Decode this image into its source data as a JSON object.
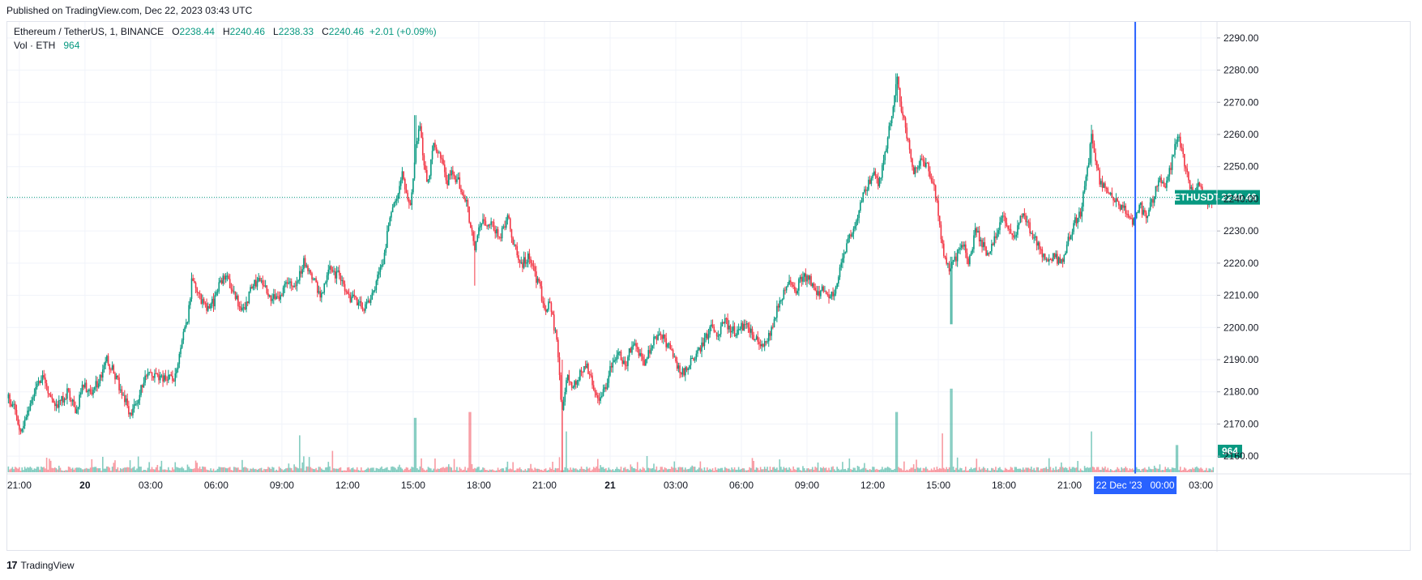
{
  "published": "Published on TradingView.com, Dec 22, 2023 03:43 UTC",
  "footer": {
    "logo": "17",
    "brand": "TradingView"
  },
  "legend": {
    "symbol": "Ethereum / TetherUS, 1, BINANCE",
    "o_label": "O",
    "o": "2238.44",
    "h_label": "H",
    "h": "2240.46",
    "l_label": "L",
    "l": "2238.33",
    "c_label": "C",
    "c": "2240.46",
    "change": "+2.01 (+0.09%)",
    "vol_label": "Vol · ETH",
    "vol": "964"
  },
  "colors": {
    "up": "#089981",
    "down": "#f23645",
    "crosshair": "#2962ff",
    "grid": "#f0f3fa"
  },
  "chart_data": {
    "type": "candlestick",
    "symbol": "ETHUSDT",
    "last_price": 2240.46,
    "last_price_label": "2240.46",
    "last_volume_label": "964",
    "crosshair_time_label": "22 Dec '23   00:00",
    "crosshair_time": "22 Dec '23 00:00",
    "yaxis": {
      "range": [
        2155,
        2295
      ],
      "ticks": [
        "2160.00",
        "2170.00",
        "2180.00",
        "2190.00",
        "2200.00",
        "2210.00",
        "2220.00",
        "2230.00",
        "2240.00",
        "2250.00",
        "2260.00",
        "2270.00",
        "2280.00",
        "2290.00"
      ]
    },
    "xaxis": {
      "ticks": [
        "21:00",
        "20",
        "03:00",
        "06:00",
        "09:00",
        "12:00",
        "15:00",
        "18:00",
        "21:00",
        "21",
        "03:00",
        "06:00",
        "09:00",
        "12:00",
        "15:00",
        "18:00",
        "21:00",
        "03:00"
      ],
      "tick_times_hours": [
        0,
        3,
        6,
        9,
        12,
        15,
        18,
        21,
        24,
        27,
        30,
        33,
        36,
        39,
        42,
        45,
        48,
        54
      ]
    },
    "time_range_hours": [
      -0.55,
      54.7
    ],
    "price_path": [
      [
        -0.5,
        2178
      ],
      [
        -0.2,
        2175
      ],
      [
        0.05,
        2166
      ],
      [
        0.3,
        2172
      ],
      [
        0.7,
        2180
      ],
      [
        1.1,
        2185
      ],
      [
        1.4,
        2178
      ],
      [
        1.8,
        2176
      ],
      [
        2.2,
        2180
      ],
      [
        2.6,
        2174
      ],
      [
        2.9,
        2182
      ],
      [
        3.3,
        2180
      ],
      [
        3.7,
        2184
      ],
      [
        4.0,
        2190
      ],
      [
        4.3,
        2186
      ],
      [
        4.7,
        2180
      ],
      [
        5.1,
        2172
      ],
      [
        5.5,
        2180
      ],
      [
        5.9,
        2186
      ],
      [
        6.3,
        2184
      ],
      [
        6.8,
        2185
      ],
      [
        7.1,
        2184
      ],
      [
        7.4,
        2195
      ],
      [
        7.7,
        2203
      ],
      [
        7.9,
        2216
      ],
      [
        8.2,
        2210
      ],
      [
        8.6,
        2206
      ],
      [
        8.9,
        2208
      ],
      [
        9.2,
        2214
      ],
      [
        9.5,
        2216
      ],
      [
        9.8,
        2210
      ],
      [
        10.2,
        2205
      ],
      [
        10.6,
        2212
      ],
      [
        11.0,
        2216
      ],
      [
        11.4,
        2210
      ],
      [
        11.8,
        2208
      ],
      [
        12.2,
        2214
      ],
      [
        12.6,
        2212
      ],
      [
        13.0,
        2220
      ],
      [
        13.4,
        2215
      ],
      [
        13.8,
        2210
      ],
      [
        14.2,
        2218
      ],
      [
        14.6,
        2216
      ],
      [
        15.0,
        2210
      ],
      [
        15.4,
        2208
      ],
      [
        15.8,
        2206
      ],
      [
        16.2,
        2212
      ],
      [
        16.6,
        2220
      ],
      [
        16.9,
        2232
      ],
      [
        17.2,
        2240
      ],
      [
        17.5,
        2248
      ],
      [
        17.7,
        2240
      ],
      [
        17.9,
        2238
      ],
      [
        18.1,
        2255
      ],
      [
        18.3,
        2262
      ],
      [
        18.5,
        2250
      ],
      [
        18.7,
        2245
      ],
      [
        18.9,
        2256
      ],
      [
        19.2,
        2255
      ],
      [
        19.5,
        2245
      ],
      [
        19.8,
        2248
      ],
      [
        20.1,
        2245
      ],
      [
        20.4,
        2240
      ],
      [
        20.6,
        2232
      ],
      [
        20.8,
        2225
      ],
      [
        21.1,
        2232
      ],
      [
        21.4,
        2233
      ],
      [
        21.7,
        2231
      ],
      [
        22.0,
        2228
      ],
      [
        22.3,
        2235
      ],
      [
        22.6,
        2225
      ],
      [
        23.0,
        2220
      ],
      [
        23.3,
        2222
      ],
      [
        23.6,
        2216
      ],
      [
        23.8,
        2212
      ],
      [
        24.0,
        2205
      ],
      [
        24.2,
        2208
      ],
      [
        24.4,
        2202
      ],
      [
        24.6,
        2195
      ],
      [
        24.8,
        2172
      ],
      [
        25.0,
        2185
      ],
      [
        25.3,
        2182
      ],
      [
        25.6,
        2185
      ],
      [
        25.9,
        2188
      ],
      [
        26.2,
        2182
      ],
      [
        26.5,
        2176
      ],
      [
        26.8,
        2182
      ],
      [
        27.1,
        2189
      ],
      [
        27.4,
        2192
      ],
      [
        27.7,
        2188
      ],
      [
        28.0,
        2195
      ],
      [
        28.3,
        2192
      ],
      [
        28.6,
        2188
      ],
      [
        28.9,
        2195
      ],
      [
        29.2,
        2198
      ],
      [
        29.5,
        2196
      ],
      [
        29.8,
        2192
      ],
      [
        30.1,
        2188
      ],
      [
        30.4,
        2186
      ],
      [
        30.7,
        2190
      ],
      [
        31.0,
        2192
      ],
      [
        31.3,
        2196
      ],
      [
        31.6,
        2200
      ],
      [
        31.9,
        2198
      ],
      [
        32.2,
        2202
      ],
      [
        32.5,
        2200
      ],
      [
        32.8,
        2198
      ],
      [
        33.1,
        2201
      ],
      [
        33.4,
        2199
      ],
      [
        33.7,
        2196
      ],
      [
        34.0,
        2194
      ],
      [
        34.3,
        2198
      ],
      [
        34.6,
        2205
      ],
      [
        34.9,
        2210
      ],
      [
        35.2,
        2214
      ],
      [
        35.5,
        2212
      ],
      [
        35.8,
        2216
      ],
      [
        36.1,
        2215
      ],
      [
        36.4,
        2210
      ],
      [
        36.7,
        2212
      ],
      [
        37.0,
        2208
      ],
      [
        37.3,
        2212
      ],
      [
        37.6,
        2222
      ],
      [
        37.9,
        2228
      ],
      [
        38.2,
        2232
      ],
      [
        38.5,
        2240
      ],
      [
        38.8,
        2245
      ],
      [
        39.0,
        2248
      ],
      [
        39.3,
        2245
      ],
      [
        39.6,
        2255
      ],
      [
        39.9,
        2268
      ],
      [
        40.1,
        2278
      ],
      [
        40.3,
        2268
      ],
      [
        40.5,
        2262
      ],
      [
        40.7,
        2255
      ],
      [
        40.9,
        2248
      ],
      [
        41.2,
        2252
      ],
      [
        41.5,
        2250
      ],
      [
        41.8,
        2245
      ],
      [
        42.0,
        2235
      ],
      [
        42.2,
        2225
      ],
      [
        42.5,
        2218
      ],
      [
        42.8,
        2222
      ],
      [
        43.1,
        2226
      ],
      [
        43.4,
        2220
      ],
      [
        43.7,
        2230
      ],
      [
        44.0,
        2226
      ],
      [
        44.3,
        2222
      ],
      [
        44.6,
        2228
      ],
      [
        44.9,
        2235
      ],
      [
        45.2,
        2232
      ],
      [
        45.5,
        2228
      ],
      [
        45.8,
        2236
      ],
      [
        46.1,
        2232
      ],
      [
        46.4,
        2228
      ],
      [
        46.7,
        2224
      ],
      [
        47.0,
        2220
      ],
      [
        47.3,
        2222
      ],
      [
        47.6,
        2220
      ],
      [
        47.9,
        2226
      ],
      [
        48.2,
        2232
      ],
      [
        48.5,
        2236
      ],
      [
        48.8,
        2248
      ],
      [
        49.0,
        2260
      ],
      [
        49.2,
        2252
      ],
      [
        49.4,
        2245
      ],
      [
        49.7,
        2242
      ],
      [
        50.0,
        2240
      ],
      [
        50.3,
        2238
      ],
      [
        50.6,
        2236
      ],
      [
        50.9,
        2233
      ],
      [
        51.2,
        2238
      ],
      [
        51.5,
        2234
      ],
      [
        51.8,
        2240
      ],
      [
        52.1,
        2246
      ],
      [
        52.4,
        2244
      ],
      [
        52.7,
        2252
      ],
      [
        52.9,
        2260
      ],
      [
        53.1,
        2256
      ],
      [
        53.3,
        2250
      ],
      [
        53.5,
        2244
      ],
      [
        53.7,
        2240
      ],
      [
        53.9,
        2244
      ],
      [
        54.1,
        2242
      ],
      [
        54.3,
        2238
      ],
      [
        54.6,
        2240.46
      ]
    ],
    "wick_extremes": [
      {
        "t": 18.1,
        "high": 2266,
        "low": 2252
      },
      {
        "t": 20.8,
        "high": 2230,
        "low": 2213
      },
      {
        "t": 24.8,
        "high": 2190,
        "low": 2155
      },
      {
        "t": 40.1,
        "high": 2279,
        "low": 2270
      },
      {
        "t": 42.6,
        "high": 2222,
        "low": 2201
      },
      {
        "t": 49.0,
        "high": 2263,
        "low": 2250
      }
    ],
    "volume_spikes": [
      {
        "t": 12.8,
        "v": 0.38
      },
      {
        "t": 14.3,
        "v": 0.22
      },
      {
        "t": 18.1,
        "v": 0.56
      },
      {
        "t": 20.6,
        "v": 0.62
      },
      {
        "t": 24.8,
        "v": 0.74
      },
      {
        "t": 25.0,
        "v": 0.42
      },
      {
        "t": 40.1,
        "v": 0.62
      },
      {
        "t": 42.6,
        "v": 0.86
      },
      {
        "t": 42.2,
        "v": 0.4
      },
      {
        "t": 49.0,
        "v": 0.42
      },
      {
        "t": 52.9,
        "v": 0.28
      }
    ]
  }
}
